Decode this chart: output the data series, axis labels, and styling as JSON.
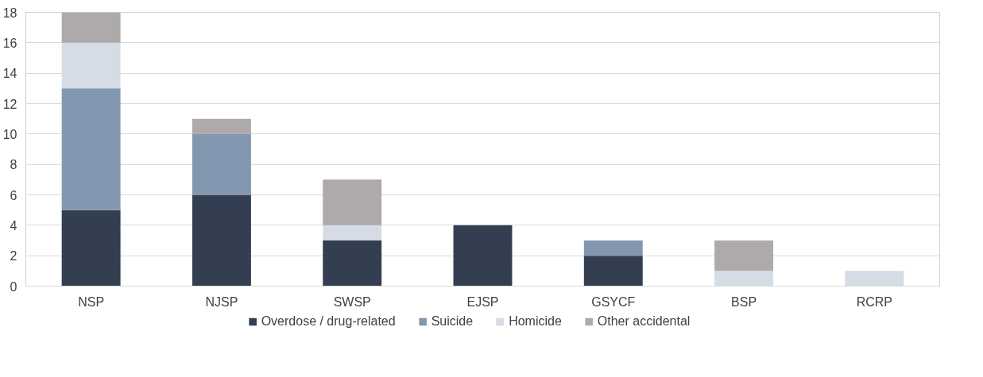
{
  "chart_data": {
    "type": "bar",
    "stacked": true,
    "categories": [
      "NSP",
      "NJSP",
      "SWSP",
      "EJSP",
      "GSYCF",
      "BSP",
      "RCRP"
    ],
    "series": [
      {
        "name": "Overdose / drug-related",
        "color": "#333f50",
        "values": [
          5,
          6,
          3,
          4,
          2,
          0,
          0
        ]
      },
      {
        "name": "Suicide",
        "color": "#8497b0",
        "values": [
          8,
          4,
          0,
          0,
          1,
          0,
          0
        ]
      },
      {
        "name": "Homicide",
        "color": "#d6dce5",
        "values": [
          3,
          0,
          1,
          0,
          0,
          1,
          1
        ]
      },
      {
        "name": "Other accidental",
        "color": "#aeaaaa",
        "values": [
          2,
          1,
          3,
          0,
          0,
          2,
          0
        ]
      }
    ],
    "ylim": [
      0,
      18
    ],
    "yticks": [
      0,
      2,
      4,
      6,
      8,
      10,
      12,
      14,
      16,
      18
    ],
    "grid": "y",
    "legend": "bottom"
  }
}
